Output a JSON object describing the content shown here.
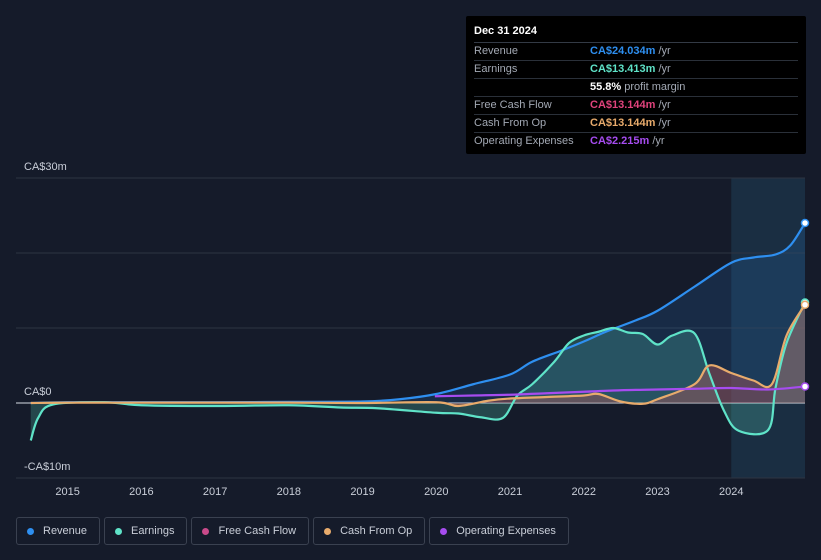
{
  "tooltip": {
    "date": "Dec 31 2024",
    "rows": [
      {
        "label": "Revenue",
        "value": "CA$24.034m",
        "unit": "/yr",
        "color": "#2e8ff0"
      },
      {
        "label": "Earnings",
        "value": "CA$13.413m",
        "unit": "/yr",
        "color": "#5fe3c8"
      },
      {
        "label": "",
        "value": "55.8%",
        "unit": "profit margin",
        "color": "#ffffff"
      },
      {
        "label": "Free Cash Flow",
        "value": "CA$13.144m",
        "unit": "/yr",
        "color": "#e0437c"
      },
      {
        "label": "Cash From Op",
        "value": "CA$13.144m",
        "unit": "/yr",
        "color": "#e8ab6c"
      },
      {
        "label": "Operating Expenses",
        "value": "CA$2.215m",
        "unit": "/yr",
        "color": "#a64cf0"
      }
    ]
  },
  "legend": [
    {
      "label": "Revenue",
      "color": "#2e8ff0"
    },
    {
      "label": "Earnings",
      "color": "#5fe3c8"
    },
    {
      "label": "Free Cash Flow",
      "color": "#c94a8a"
    },
    {
      "label": "Cash From Op",
      "color": "#e8ab6c"
    },
    {
      "label": "Operating Expenses",
      "color": "#a64cf0"
    }
  ],
  "chart_data": {
    "type": "line",
    "title": "",
    "y_tick_labels": [
      "CA$30m",
      "CA$0",
      "-CA$10m"
    ],
    "ylim": [
      -10,
      30
    ],
    "xlim": [
      2014.3,
      2025.0
    ],
    "x_ticks": [
      "2015",
      "2016",
      "2017",
      "2018",
      "2019",
      "2020",
      "2021",
      "2022",
      "2023",
      "2024"
    ],
    "highlight_from": 2024.0,
    "series": [
      {
        "name": "Revenue",
        "color": "#2e8ff0",
        "x": [
          2014.5,
          2015,
          2016,
          2017,
          2018,
          2019,
          2019.5,
          2020,
          2020.5,
          2021,
          2021.3,
          2021.7,
          2022,
          2022.3,
          2022.7,
          2023,
          2023.5,
          2024,
          2024.3,
          2024.6,
          2024.8,
          2025.0
        ],
        "y": [
          0,
          0.1,
          0.1,
          0.1,
          0.15,
          0.2,
          0.5,
          1.2,
          2.5,
          3.8,
          5.5,
          7,
          8.2,
          9.5,
          11,
          12.3,
          15.5,
          18.7,
          19.4,
          19.8,
          21,
          24.0
        ]
      },
      {
        "name": "Earnings",
        "color": "#5fe3c8",
        "x": [
          2014.5,
          2014.6,
          2014.8,
          2015.5,
          2016,
          2017,
          2018,
          2018.7,
          2019.2,
          2020,
          2020.3,
          2020.6,
          2020.9,
          2021.1,
          2021.3,
          2021.6,
          2021.8,
          2022,
          2022.2,
          2022.4,
          2022.6,
          2022.8,
          2023,
          2023.2,
          2023.5,
          2023.7,
          2023.9,
          2024.1,
          2024.5,
          2024.6,
          2024.75,
          2025.0
        ],
        "y": [
          -5,
          -2,
          -0.2,
          0.1,
          -0.3,
          -0.4,
          -0.3,
          -0.6,
          -0.7,
          -1.3,
          -1.4,
          -1.9,
          -2.0,
          1.0,
          2.5,
          5.5,
          8.0,
          9.0,
          9.5,
          10.0,
          9.4,
          9.2,
          7.8,
          9.0,
          9.3,
          4.0,
          -1.0,
          -3.7,
          -3.6,
          2.0,
          8.0,
          13.4
        ]
      },
      {
        "name": "Free Cash Flow",
        "color": "#e0437c",
        "x": [
          2014.5,
          2015,
          2016,
          2017,
          2018,
          2019,
          2020,
          2020.3,
          2020.7,
          2021,
          2021.5,
          2022,
          2022.2,
          2022.5,
          2022.8,
          2023,
          2023.5,
          2023.7,
          2024,
          2024.3,
          2024.55,
          2024.75,
          2025.0
        ],
        "y": [
          0,
          0.05,
          0.05,
          0.05,
          0.05,
          0,
          0.1,
          -0.4,
          0.3,
          0.6,
          0.8,
          1.0,
          1.2,
          0.2,
          -0.1,
          0.5,
          2.5,
          5.0,
          4.0,
          3.0,
          2.5,
          9.0,
          13.1
        ]
      },
      {
        "name": "Cash From Op",
        "color": "#e8ab6c",
        "x": [
          2014.5,
          2015,
          2016,
          2017,
          2018,
          2019,
          2020,
          2020.3,
          2020.7,
          2021,
          2021.5,
          2022,
          2022.2,
          2022.5,
          2022.8,
          2023,
          2023.5,
          2023.7,
          2024,
          2024.3,
          2024.55,
          2024.75,
          2025.0
        ],
        "y": [
          0,
          0.05,
          0.05,
          0.05,
          0.05,
          0,
          0.1,
          -0.4,
          0.3,
          0.6,
          0.8,
          1.0,
          1.2,
          0.2,
          -0.1,
          0.5,
          2.5,
          5.0,
          4.0,
          3.0,
          2.5,
          9.0,
          13.1
        ]
      },
      {
        "name": "Operating Expenses",
        "color": "#a64cf0",
        "x": [
          2019.98,
          2020.5,
          2021,
          2021.5,
          2022,
          2022.5,
          2023,
          2023.5,
          2024,
          2024.5,
          2025.0
        ],
        "y": [
          0.9,
          1.0,
          1.1,
          1.3,
          1.5,
          1.7,
          1.8,
          1.9,
          2.0,
          1.8,
          2.2
        ]
      }
    ]
  }
}
